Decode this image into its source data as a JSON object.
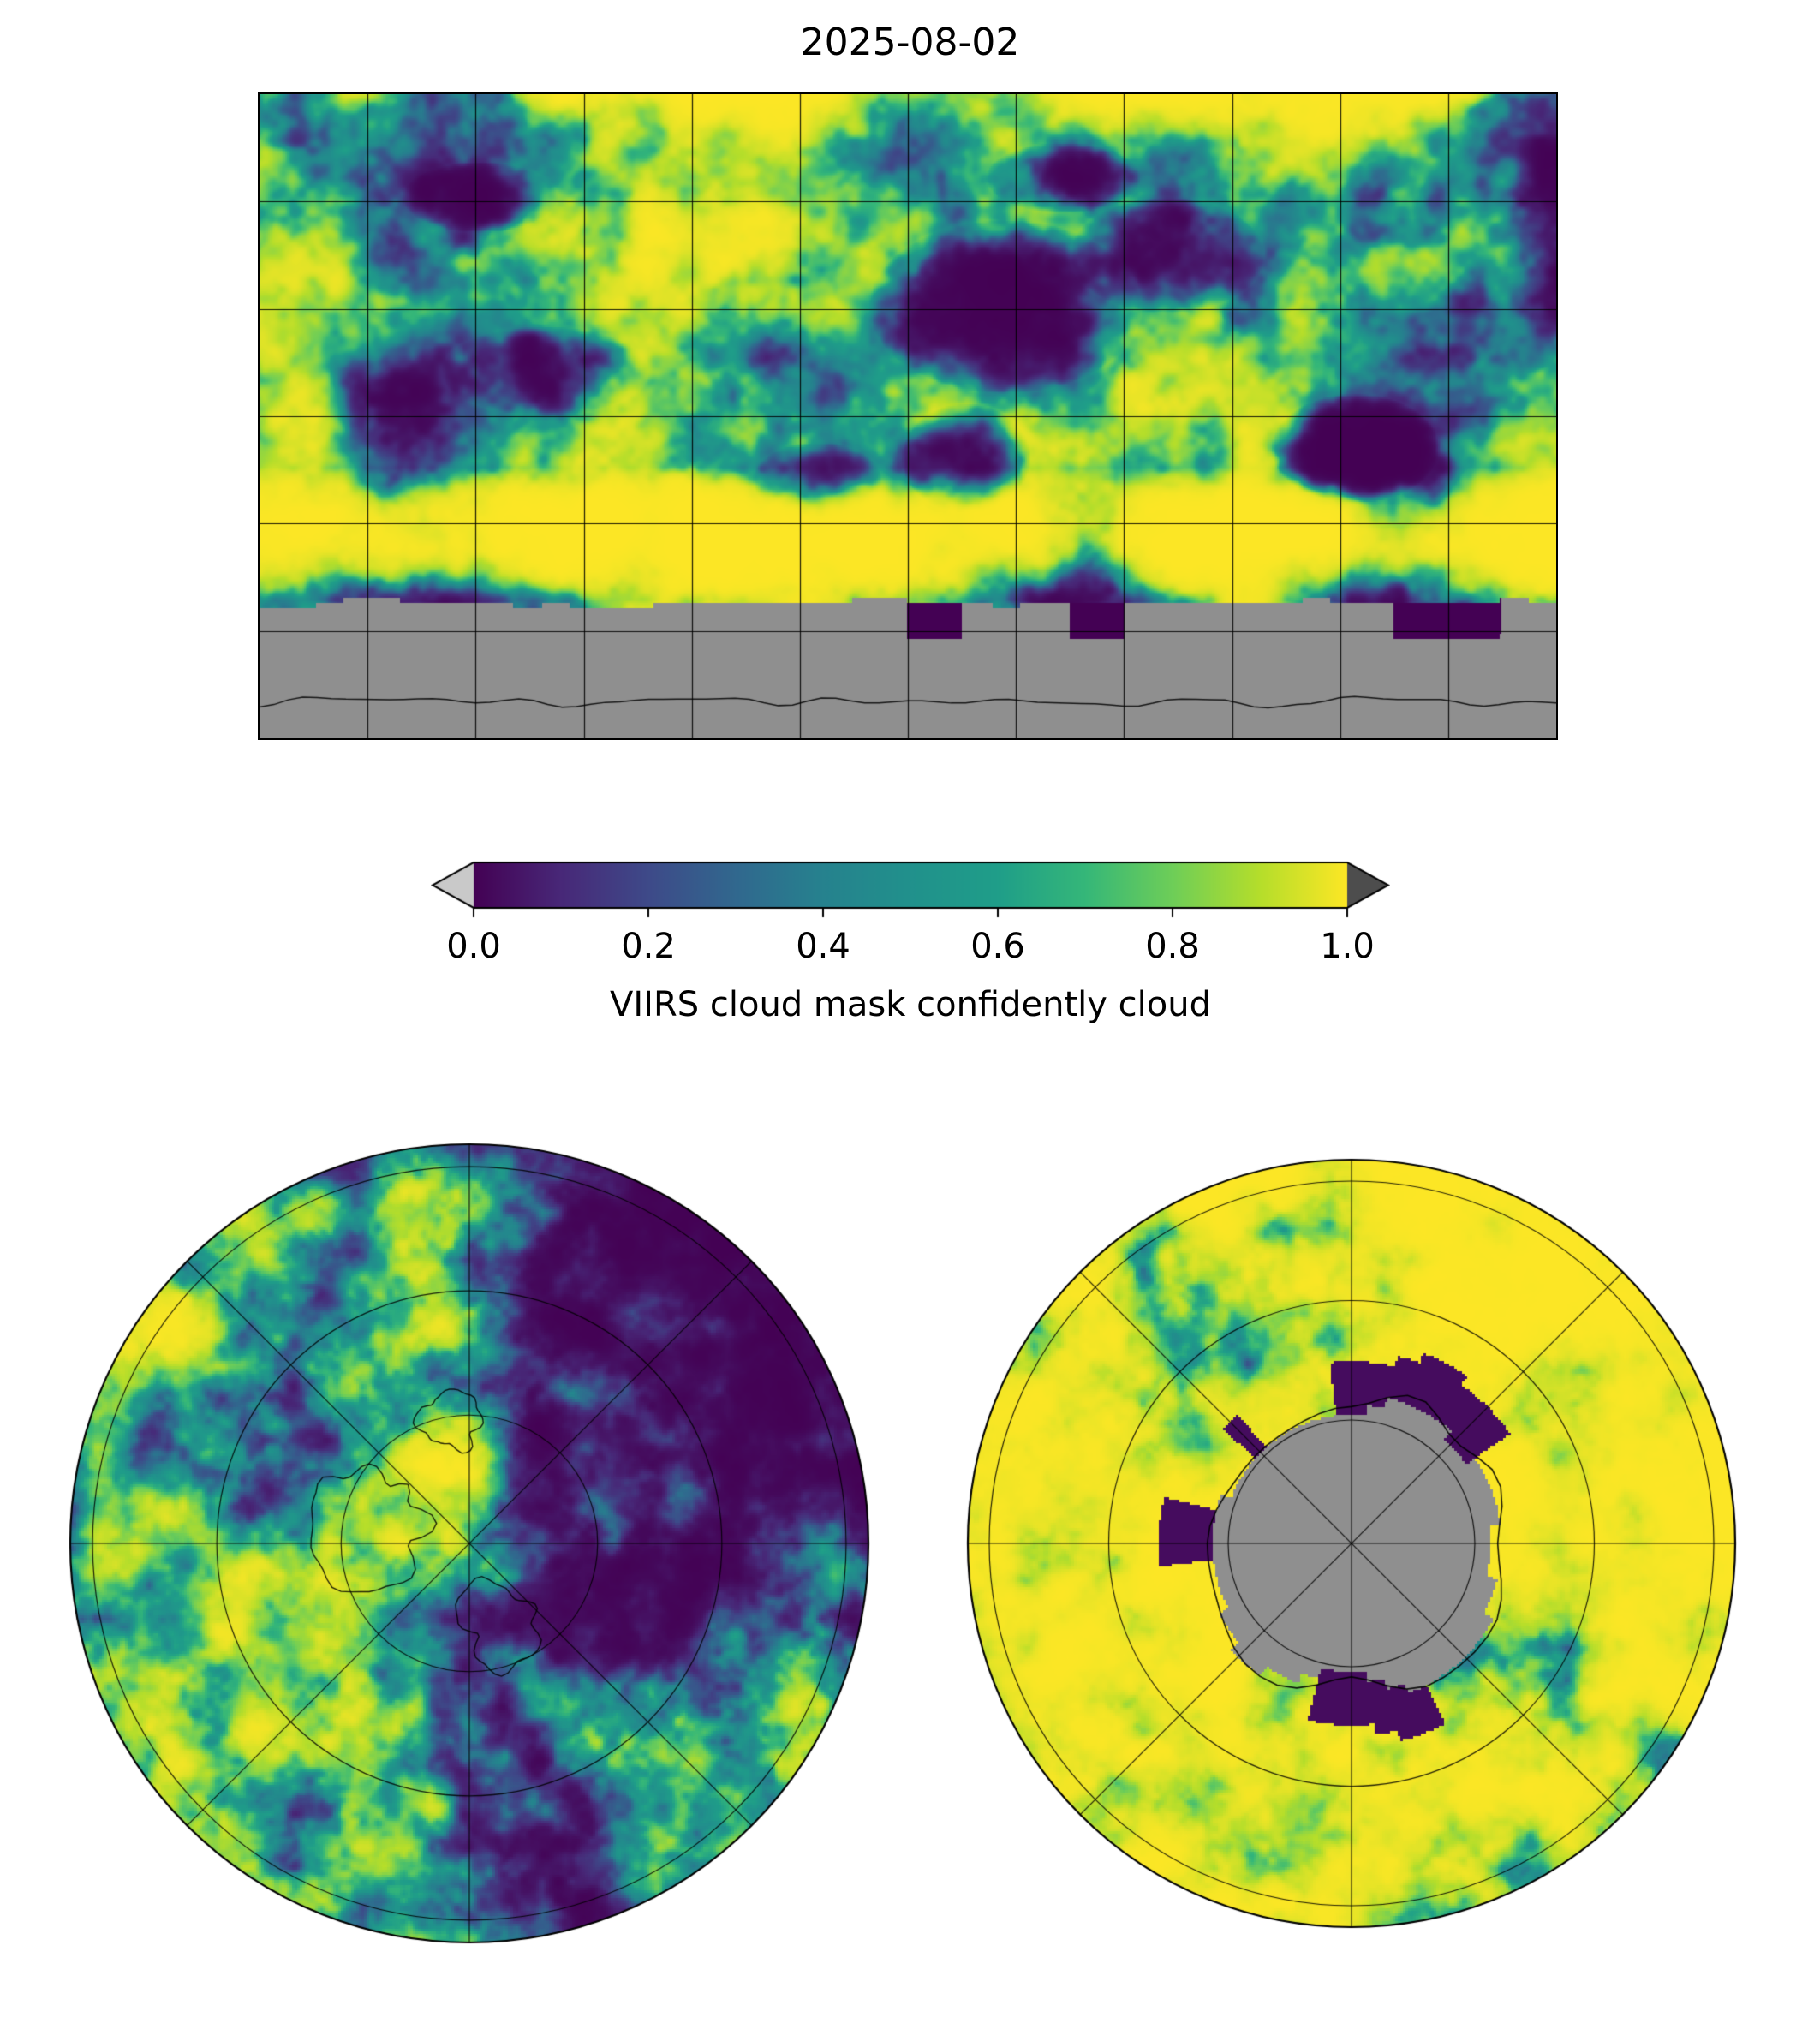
{
  "title": "2025-08-02",
  "colorbar": {
    "label": "VIIRS cloud mask confidently cloud",
    "ticks": [
      "0.0",
      "0.2",
      "0.4",
      "0.6",
      "0.8",
      "1.0"
    ]
  },
  "colors": {
    "viridis": [
      "#440154",
      "#482878",
      "#3e4a89",
      "#31688e",
      "#26828e",
      "#21918c",
      "#1f9e89",
      "#35b779",
      "#6ece58",
      "#b5de2b",
      "#fde725"
    ],
    "missing_data_gray": "#8f8f8f",
    "under_arrow": "#c9c9c9",
    "over_arrow": "#4d4d4d",
    "gridline": "#000000",
    "background": "#ffffff"
  },
  "chart_data": {
    "type": "heatmap",
    "title": "2025-08-02",
    "variable": "VIIRS cloud mask confidently cloud",
    "colormap": "viridis",
    "colorbar_orientation": "horizontal",
    "colorbar_ticks": [
      0.0,
      0.2,
      0.4,
      0.6,
      0.8,
      1.0
    ],
    "value_range": [
      0.0,
      1.0
    ],
    "missing_data": "gray shading = no data (region south of ~60S band and Antarctic interior)",
    "panels": [
      {
        "name": "global-map",
        "projection": "equirectangular",
        "gridlines": "30-degree graticule",
        "extent": "global"
      },
      {
        "name": "north-polar-map",
        "projection": "north polar stereographic",
        "gridlines": "45-degree meridians, 3 latitude circles"
      },
      {
        "name": "south-polar-map",
        "projection": "south polar stereographic",
        "gridlines": "45-degree meridians, 3 latitude circles"
      }
    ]
  }
}
